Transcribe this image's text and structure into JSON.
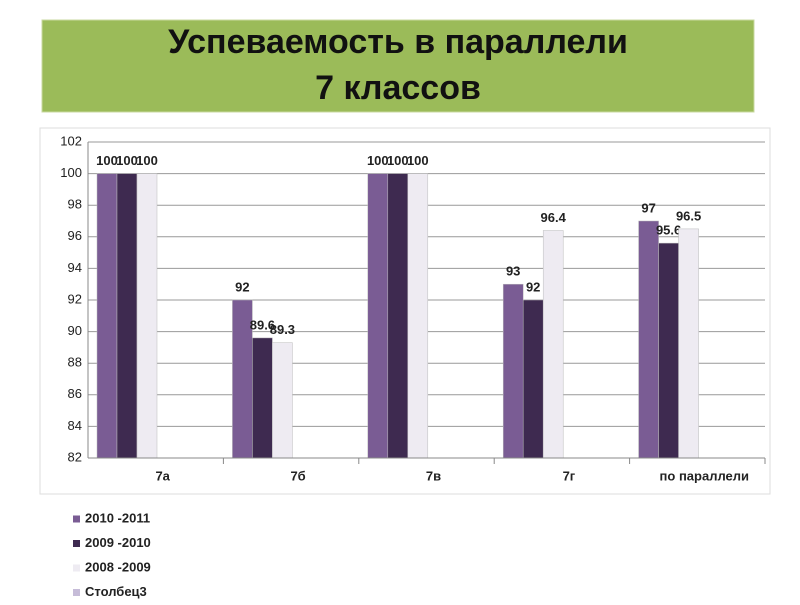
{
  "chart_data": {
    "type": "bar",
    "title": [
      "Успеваемость в параллели",
      "7 классов"
    ],
    "categories": [
      "7а",
      "7б",
      "7в",
      "7г",
      "по параллели"
    ],
    "series": [
      {
        "name": "2010 -2011",
        "color": "#7a5c94",
        "values": [
          100,
          92,
          100,
          93,
          97
        ]
      },
      {
        "name": "2009 -2010",
        "color": "#3e2a50",
        "values": [
          100,
          89.6,
          100,
          92,
          95.6
        ]
      },
      {
        "name": "2008 -2009",
        "color": "#eeebf2",
        "values": [
          100,
          89.3,
          100,
          96.4,
          96.5
        ]
      },
      {
        "name": "Столбец3",
        "color": "#c6bcd8",
        "values": [
          null,
          null,
          null,
          null,
          null
        ]
      }
    ],
    "ylim": [
      82,
      102
    ],
    "yticks": [
      82,
      84,
      86,
      88,
      90,
      92,
      94,
      96,
      98,
      100,
      102
    ],
    "grid": true
  }
}
